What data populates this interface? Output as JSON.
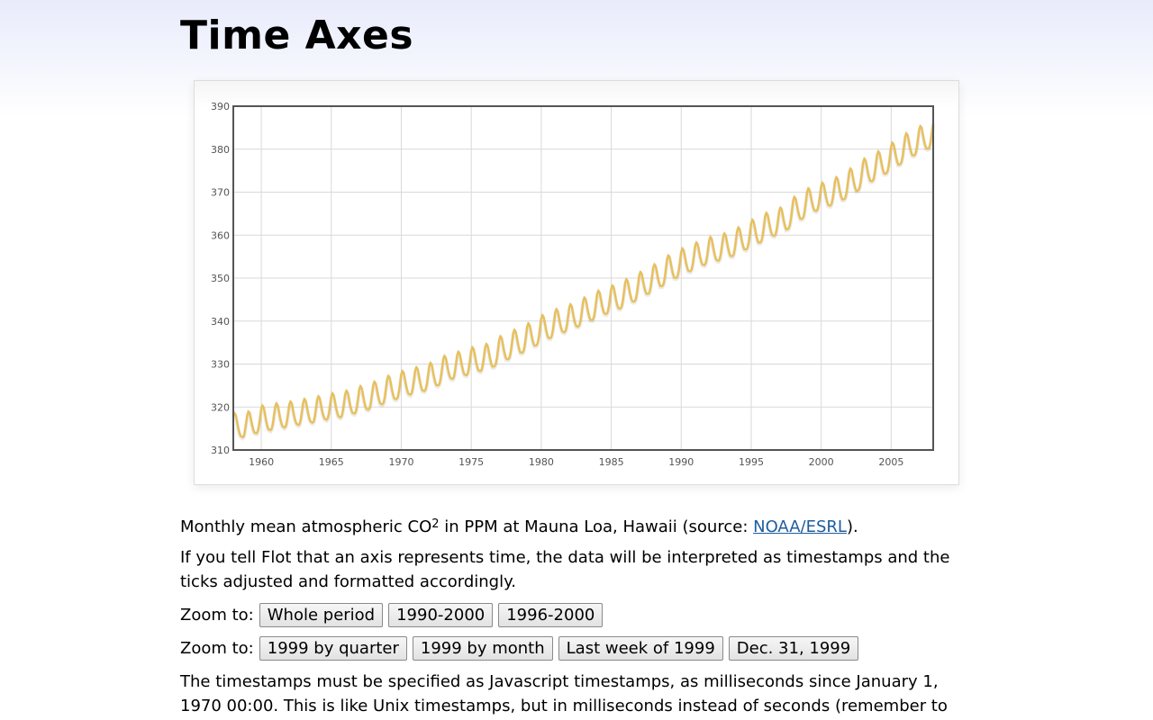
{
  "page": {
    "title": "Time Axes"
  },
  "caption": {
    "text_before": "Monthly mean atmospheric CO",
    "subscript": "2",
    "text_middle": " in PPM at Mauna Loa, Hawaii (source: ",
    "link": "NOAA/ESRL",
    "text_after": ")."
  },
  "para1": "If you tell Flot that an axis represents time, the data will be interpreted as timestamps and the ticks adjusted and formatted accordingly.",
  "zoom_row1": {
    "label": "Zoom to:",
    "buttons": [
      "Whole period",
      "1990-2000",
      "1996-2000"
    ]
  },
  "zoom_row2": {
    "label": "Zoom to:",
    "buttons": [
      "1999 by quarter",
      "1999 by month",
      "Last week of 1999",
      "Dec. 31, 1999"
    ]
  },
  "para2": "The timestamps must be specified as Javascript timestamps, as milliseconds since January 1, 1970 00:00. This is like Unix timestamps, but in milliseconds instead of seconds (remember to",
  "colors": {
    "series": "#e8c05a",
    "grid": "#d9d9d9",
    "border": "#545454",
    "link": "#1d5da0"
  },
  "chart_data": {
    "type": "line",
    "title": "",
    "xlabel": "",
    "ylabel": "",
    "x_ticks": [
      "1960",
      "1965",
      "1970",
      "1975",
      "1980",
      "1985",
      "1990",
      "1995",
      "2000",
      "2005"
    ],
    "y_ticks": [
      "310",
      "320",
      "330",
      "340",
      "350",
      "360",
      "370",
      "380",
      "390"
    ],
    "xlim": [
      1958.0,
      2008.0
    ],
    "ylim": [
      310,
      390
    ],
    "grid": true,
    "legend": "none",
    "series": [
      {
        "x": [
          1958.0,
          1958.5,
          1959.0,
          1959.5,
          1960.0,
          1960.5,
          1961.0,
          1961.5,
          1962.0,
          1962.5,
          1963.0,
          1963.5,
          1964.0,
          1964.5,
          1965.0,
          1965.5,
          1966.0,
          1966.5,
          1967.0,
          1967.5,
          1968.0,
          1968.5,
          1969.0,
          1969.5,
          1970.0,
          1970.5,
          1971.0,
          1971.5,
          1972.0,
          1972.5,
          1973.0,
          1973.5,
          1974.0,
          1974.5,
          1975.0,
          1975.5,
          1976.0,
          1976.5,
          1977.0,
          1977.5,
          1978.0,
          1978.5,
          1979.0,
          1979.5,
          1980.0,
          1980.5,
          1981.0,
          1981.5,
          1982.0,
          1982.5,
          1983.0,
          1983.5,
          1984.0,
          1984.5,
          1985.0,
          1985.5,
          1986.0,
          1986.5,
          1987.0,
          1987.5,
          1988.0,
          1988.5,
          1989.0,
          1989.5,
          1990.0,
          1990.5,
          1991.0,
          1991.5,
          1992.0,
          1992.5,
          1993.0,
          1993.5,
          1994.0,
          1994.5,
          1995.0,
          1995.5,
          1996.0,
          1996.5,
          1997.0,
          1997.5,
          1998.0,
          1998.5,
          1999.0,
          1999.5,
          2000.0,
          2000.5,
          2001.0,
          2001.5,
          2002.0,
          2002.5,
          2003.0,
          2003.5,
          2004.0,
          2004.5,
          2005.0,
          2005.5,
          2006.0,
          2006.5,
          2007.0,
          2007.5,
          2008.0
        ],
        "y": [
          315.7,
          314.9,
          316.0,
          315.6,
          317.5,
          316.4,
          318.0,
          317.1,
          318.4,
          317.7,
          319.0,
          318.2,
          319.6,
          318.9,
          320.3,
          319.4,
          320.9,
          320.2,
          322.0,
          321.1,
          323.0,
          322.3,
          324.4,
          323.5,
          325.5,
          324.6,
          326.4,
          325.4,
          327.4,
          326.6,
          329.0,
          328.3,
          330.0,
          329.1,
          331.0,
          330.1,
          331.8,
          330.9,
          333.6,
          332.7,
          335.1,
          334.2,
          336.6,
          335.8,
          338.5,
          337.6,
          339.9,
          339.1,
          341.0,
          340.3,
          342.6,
          341.8,
          344.2,
          343.3,
          345.4,
          344.5,
          346.8,
          346.1,
          348.5,
          347.9,
          350.3,
          349.6,
          352.4,
          351.6,
          354.0,
          353.2,
          355.4,
          354.7,
          356.7,
          355.8,
          357.5,
          356.7,
          358.9,
          358.2,
          360.7,
          359.8,
          362.3,
          361.5,
          363.5,
          362.8,
          366.0,
          365.3,
          368.0,
          367.3,
          369.3,
          368.5,
          370.6,
          369.8,
          372.6,
          371.8,
          374.9,
          374.1,
          376.6,
          375.8,
          378.6,
          377.9,
          380.8,
          380.1,
          382.5,
          381.7,
          384.0
        ],
        "seasonal_amplitude_ppm": 2.9
      }
    ]
  }
}
